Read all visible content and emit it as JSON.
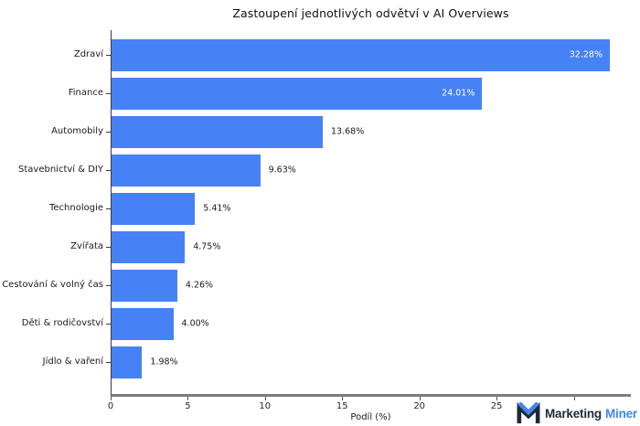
{
  "chart_data": {
    "type": "bar",
    "orientation": "horizontal",
    "title": "Zastoupení jednotlivých odvětví v AI Overviews",
    "xlabel": "Podíl (%)",
    "categories": [
      "Zdraví",
      "Finance",
      "Automobily",
      "Stavebnictví & DIY",
      "Technologie",
      "Zvířata",
      "Cestování & volný čas",
      "Děti & rodičovství",
      "Jídlo & vaření"
    ],
    "values": [
      32.28,
      24.01,
      13.68,
      9.63,
      5.41,
      4.75,
      4.26,
      4.0,
      1.98
    ],
    "value_labels": [
      "32.28%",
      "24.01%",
      "13.68%",
      "9.63%",
      "5.41%",
      "4.75%",
      "4.26%",
      "4.00%",
      "1.98%"
    ],
    "label_inside": [
      true,
      true,
      false,
      false,
      false,
      false,
      false,
      false,
      false
    ],
    "xlim": [
      0,
      33.7
    ],
    "xticks": [
      0,
      5,
      10,
      15,
      20,
      25,
      30
    ],
    "grid": false,
    "legend": false,
    "bar_color": "#4681F5",
    "inside_label_color": "#FFFFFF",
    "outside_label_color": "#1A1A1A"
  },
  "logo": {
    "part1": "Marketing",
    "part2": "Miner",
    "dark_color": "#1F2A37",
    "blue_color": "#4285F4"
  }
}
